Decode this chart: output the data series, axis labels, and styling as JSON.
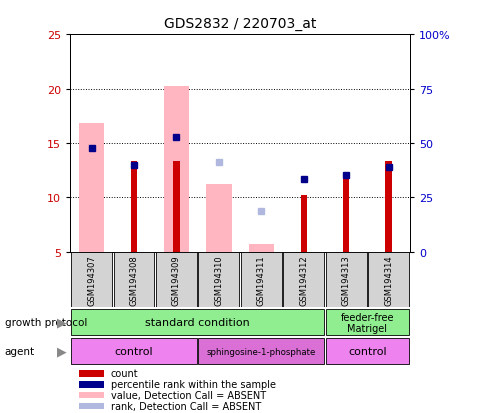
{
  "title": "GDS2832 / 220703_at",
  "samples": [
    "GSM194307",
    "GSM194308",
    "GSM194309",
    "GSM194310",
    "GSM194311",
    "GSM194312",
    "GSM194313",
    "GSM194314"
  ],
  "count_values": [
    null,
    13.3,
    13.3,
    null,
    null,
    10.2,
    11.7,
    13.3
  ],
  "percentile_values": [
    14.5,
    13.0,
    15.5,
    null,
    null,
    11.7,
    12.0,
    12.8
  ],
  "absent_value_bars": [
    16.8,
    null,
    20.2,
    11.2,
    5.7,
    null,
    null,
    null
  ],
  "absent_rank_dots": [
    null,
    null,
    null,
    13.2,
    8.7,
    null,
    null,
    null
  ],
  "ylim": [
    5,
    25
  ],
  "yticks_left": [
    5,
    10,
    15,
    20,
    25
  ],
  "right_tick_labels": [
    "0",
    "25",
    "50",
    "75",
    "100%"
  ],
  "absent_bar_color": "#ffb6c1",
  "count_bar_color": "#cc0000",
  "percentile_color": "#00008b",
  "absent_rank_color": "#b0b8e0",
  "axis_color_left": "#cc0000",
  "axis_color_right": "#0000cc",
  "plot_bg": "#ffffff",
  "sample_box_color": "#d3d3d3",
  "growth_color": "#90ee90",
  "agent_light_color": "#ee82ee",
  "agent_dark_color": "#da70d6",
  "legend_colors": [
    "#cc0000",
    "#00008b",
    "#ffb6c1",
    "#b0b8e0"
  ],
  "legend_labels": [
    "count",
    "percentile rank within the sample",
    "value, Detection Call = ABSENT",
    "rank, Detection Call = ABSENT"
  ]
}
